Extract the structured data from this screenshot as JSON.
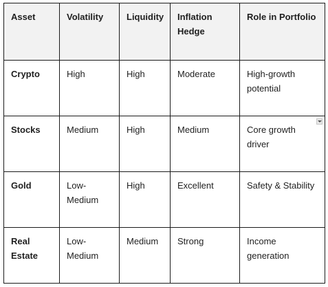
{
  "table": {
    "headers": [
      "Asset",
      "Volatility",
      "Liquidity",
      "Inflation Hedge",
      "Role in Portfolio"
    ],
    "rows": [
      {
        "asset": "Crypto",
        "volatility": "High",
        "liquidity": "High",
        "inflation_hedge": "Moderate",
        "role": "High-growth potential"
      },
      {
        "asset": "Stocks",
        "volatility": "Medium",
        "liquidity": "High",
        "inflation_hedge": "Medium",
        "role": "Core growth driver"
      },
      {
        "asset": "Gold",
        "volatility": "Low-Medium",
        "liquidity": "High",
        "inflation_hedge": "Excellent",
        "role": "Safety & Stability"
      },
      {
        "asset": "Real Estate",
        "volatility": "Low-Medium",
        "liquidity": "Medium",
        "inflation_hedge": "Strong",
        "role": "Income generation"
      }
    ],
    "dropdown_icon": "chevron-down-icon"
  }
}
